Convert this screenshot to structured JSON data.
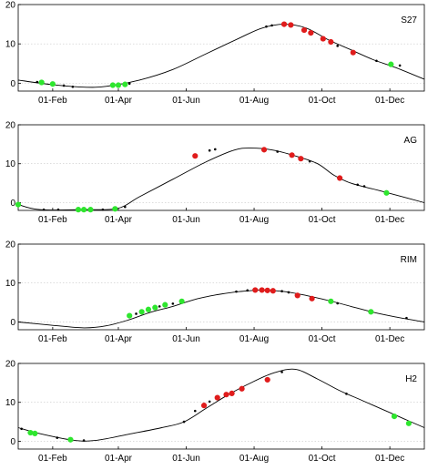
{
  "chart_data": [
    {
      "type": "line",
      "label": "S27",
      "x_ticks": [
        "01-Feb",
        "01-Apr",
        "01-Jun",
        "01-Aug",
        "01-Oct",
        "01-Dec"
      ],
      "x_tick_doy": [
        32,
        91,
        152,
        213,
        274,
        335
      ],
      "xlim": [
        1,
        366
      ],
      "ylim": [
        -2,
        20
      ],
      "y_ticks": [
        "0",
        "10",
        "20"
      ],
      "y_tick_values": [
        0,
        10,
        20
      ],
      "grid": "horizontal dotted",
      "curve": [
        [
          1,
          0.8
        ],
        [
          30,
          -0.3
        ],
        [
          60,
          -1
        ],
        [
          80,
          -0.8
        ],
        [
          110,
          0.8
        ],
        [
          140,
          3.5
        ],
        [
          170,
          7.5
        ],
        [
          200,
          11.5
        ],
        [
          220,
          14
        ],
        [
          240,
          15
        ],
        [
          260,
          14
        ],
        [
          280,
          11
        ],
        [
          300,
          8.5
        ],
        [
          320,
          6
        ],
        [
          340,
          4
        ],
        [
          366,
          1
        ]
      ],
      "points": [
        {
          "x": 22,
          "y": 0.2,
          "c": "g"
        },
        {
          "x": 32,
          "y": -0.2,
          "c": "g"
        },
        {
          "x": 86,
          "y": -0.5,
          "c": "g"
        },
        {
          "x": 91,
          "y": -0.5,
          "c": "g"
        },
        {
          "x": 97,
          "y": -0.3,
          "c": "g"
        },
        {
          "x": 240,
          "y": 15,
          "c": "r"
        },
        {
          "x": 246,
          "y": 14.8,
          "c": "r"
        },
        {
          "x": 258,
          "y": 13.5,
          "c": "r"
        },
        {
          "x": 264,
          "y": 12.8,
          "c": "r"
        },
        {
          "x": 275,
          "y": 11.3,
          "c": "r"
        },
        {
          "x": 282,
          "y": 10.5,
          "c": "r"
        },
        {
          "x": 302,
          "y": 7.8,
          "c": "r"
        },
        {
          "x": 336,
          "y": 4.8,
          "c": "g"
        },
        {
          "x": 18,
          "y": 0.3,
          "c": "k"
        },
        {
          "x": 42,
          "y": -0.6,
          "c": "k"
        },
        {
          "x": 50,
          "y": -0.9,
          "c": "k"
        },
        {
          "x": 101,
          "y": -0.1,
          "c": "k"
        },
        {
          "x": 224,
          "y": 14.4,
          "c": "k"
        },
        {
          "x": 229,
          "y": 14.7,
          "c": "k"
        },
        {
          "x": 288,
          "y": 9.5,
          "c": "k"
        },
        {
          "x": 323,
          "y": 5.7,
          "c": "k"
        },
        {
          "x": 344,
          "y": 4.5,
          "c": "k"
        }
      ]
    },
    {
      "type": "line",
      "label": "AG",
      "x_ticks": [
        "01-Feb",
        "01-Apr",
        "01-Jun",
        "01-Aug",
        "01-Oct",
        "01-Dec"
      ],
      "x_tick_doy": [
        32,
        91,
        152,
        213,
        274,
        335
      ],
      "xlim": [
        1,
        366
      ],
      "ylim": [
        -2,
        20
      ],
      "y_ticks": [
        "0",
        "10",
        "20"
      ],
      "y_tick_values": [
        0,
        10,
        20
      ],
      "grid": "horizontal dotted",
      "curve": [
        [
          1,
          -0.5
        ],
        [
          20,
          -1.8
        ],
        [
          60,
          -1.8
        ],
        [
          90,
          -1.5
        ],
        [
          110,
          1.5
        ],
        [
          140,
          6
        ],
        [
          170,
          10.5
        ],
        [
          195,
          13.5
        ],
        [
          210,
          14
        ],
        [
          230,
          13.5
        ],
        [
          250,
          12
        ],
        [
          270,
          10
        ],
        [
          285,
          7
        ],
        [
          300,
          5
        ],
        [
          320,
          3.5
        ],
        [
          340,
          2
        ],
        [
          366,
          0
        ]
      ],
      "points": [
        {
          "x": 1,
          "y": -0.5,
          "c": "g"
        },
        {
          "x": 55,
          "y": -1.8,
          "c": "g"
        },
        {
          "x": 60,
          "y": -1.8,
          "c": "g"
        },
        {
          "x": 66,
          "y": -1.8,
          "c": "g"
        },
        {
          "x": 88,
          "y": -1.6,
          "c": "g"
        },
        {
          "x": 160,
          "y": 12,
          "c": "r"
        },
        {
          "x": 222,
          "y": 13.6,
          "c": "r"
        },
        {
          "x": 247,
          "y": 12.2,
          "c": "r"
        },
        {
          "x": 255,
          "y": 11.3,
          "c": "r"
        },
        {
          "x": 290,
          "y": 6.3,
          "c": "r"
        },
        {
          "x": 24,
          "y": -1.8,
          "c": "k"
        },
        {
          "x": 37,
          "y": -1.8,
          "c": "k"
        },
        {
          "x": 77,
          "y": -1.8,
          "c": "k"
        },
        {
          "x": 97,
          "y": -1.1,
          "c": "k"
        },
        {
          "x": 173,
          "y": 13.4,
          "c": "k"
        },
        {
          "x": 178,
          "y": 13.7,
          "c": "k"
        },
        {
          "x": 234,
          "y": 13.1,
          "c": "k"
        },
        {
          "x": 263,
          "y": 10.6,
          "c": "k"
        },
        {
          "x": 306,
          "y": 4.6,
          "c": "k"
        },
        {
          "x": 312,
          "y": 4.2,
          "c": "k"
        },
        {
          "x": 332,
          "y": 2.5,
          "c": "g"
        }
      ]
    },
    {
      "type": "line",
      "label": "RIM",
      "x_ticks": [
        "01-Feb",
        "01-Apr",
        "01-Jun",
        "01-Aug",
        "01-Oct",
        "01-Dec"
      ],
      "x_tick_doy": [
        32,
        91,
        152,
        213,
        274,
        335
      ],
      "xlim": [
        1,
        366
      ],
      "ylim": [
        -2,
        20
      ],
      "y_ticks": [
        "0",
        "10",
        "20"
      ],
      "y_tick_values": [
        0,
        10,
        20
      ],
      "grid": "horizontal dotted",
      "curve": [
        [
          1,
          0
        ],
        [
          30,
          -0.8
        ],
        [
          60,
          -1.5
        ],
        [
          80,
          -1
        ],
        [
          100,
          0.5
        ],
        [
          120,
          2.5
        ],
        [
          140,
          4
        ],
        [
          160,
          5.8
        ],
        [
          180,
          7
        ],
        [
          200,
          7.8
        ],
        [
          220,
          8.2
        ],
        [
          240,
          7.8
        ],
        [
          260,
          6.8
        ],
        [
          280,
          5.5
        ],
        [
          300,
          4
        ],
        [
          320,
          2.5
        ],
        [
          340,
          1.3
        ],
        [
          366,
          0
        ]
      ],
      "points": [
        {
          "x": 101,
          "y": 1.6,
          "c": "g"
        },
        {
          "x": 112,
          "y": 2.6,
          "c": "g"
        },
        {
          "x": 118,
          "y": 3.2,
          "c": "g"
        },
        {
          "x": 124,
          "y": 3.7,
          "c": "g"
        },
        {
          "x": 133,
          "y": 4.4,
          "c": "g"
        },
        {
          "x": 148,
          "y": 5.3,
          "c": "g"
        },
        {
          "x": 214,
          "y": 8.2,
          "c": "r"
        },
        {
          "x": 220,
          "y": 8.2,
          "c": "r"
        },
        {
          "x": 225,
          "y": 8.1,
          "c": "r"
        },
        {
          "x": 230,
          "y": 8.0,
          "c": "r"
        },
        {
          "x": 252,
          "y": 6.8,
          "c": "r"
        },
        {
          "x": 265,
          "y": 6.0,
          "c": "r"
        },
        {
          "x": 282,
          "y": 5.3,
          "c": "g"
        },
        {
          "x": 107,
          "y": 2.1,
          "c": "k"
        },
        {
          "x": 128,
          "y": 4.0,
          "c": "k"
        },
        {
          "x": 140,
          "y": 4.7,
          "c": "k"
        },
        {
          "x": 197,
          "y": 7.8,
          "c": "k"
        },
        {
          "x": 207,
          "y": 8.1,
          "c": "k"
        },
        {
          "x": 238,
          "y": 7.9,
          "c": "k"
        },
        {
          "x": 244,
          "y": 7.6,
          "c": "k"
        },
        {
          "x": 288,
          "y": 4.8,
          "c": "k"
        },
        {
          "x": 318,
          "y": 2.6,
          "c": "g"
        },
        {
          "x": 350,
          "y": 1,
          "c": "k"
        }
      ]
    },
    {
      "type": "line",
      "label": "H2",
      "x_ticks": [
        "01-Feb",
        "01-Apr",
        "01-Jun",
        "01-Aug",
        "01-Oct",
        "01-Dec"
      ],
      "x_tick_doy": [
        32,
        91,
        152,
        213,
        274,
        335
      ],
      "xlim": [
        1,
        366
      ],
      "ylim": [
        -2,
        20
      ],
      "y_ticks": [
        "0",
        "10",
        "20"
      ],
      "y_tick_values": [
        0,
        10,
        20
      ],
      "grid": "horizontal dotted",
      "curve": [
        [
          1,
          3.5
        ],
        [
          20,
          2
        ],
        [
          50,
          0.3
        ],
        [
          70,
          0.2
        ],
        [
          100,
          1.8
        ],
        [
          130,
          3.5
        ],
        [
          150,
          5
        ],
        [
          170,
          8.5
        ],
        [
          190,
          12
        ],
        [
          210,
          15
        ],
        [
          230,
          17.5
        ],
        [
          250,
          18.5
        ],
        [
          270,
          16
        ],
        [
          290,
          13
        ],
        [
          310,
          10.5
        ],
        [
          330,
          8
        ],
        [
          350,
          5.5
        ],
        [
          366,
          3.5
        ]
      ],
      "points": [
        {
          "x": 12,
          "y": 2.2,
          "c": "g"
        },
        {
          "x": 16,
          "y": 2.0,
          "c": "g"
        },
        {
          "x": 48,
          "y": 0.4,
          "c": "g"
        },
        {
          "x": 168,
          "y": 9.2,
          "c": "r"
        },
        {
          "x": 180,
          "y": 11.2,
          "c": "r"
        },
        {
          "x": 188,
          "y": 12.0,
          "c": "r"
        },
        {
          "x": 193,
          "y": 12.3,
          "c": "r"
        },
        {
          "x": 202,
          "y": 13.5,
          "c": "r"
        },
        {
          "x": 225,
          "y": 15.8,
          "c": "r"
        },
        {
          "x": 4,
          "y": 3.2,
          "c": "k"
        },
        {
          "x": 36,
          "y": 0.9,
          "c": "k"
        },
        {
          "x": 60,
          "y": 0.2,
          "c": "k"
        },
        {
          "x": 150,
          "y": 5,
          "c": "k"
        },
        {
          "x": 160,
          "y": 7.8,
          "c": "k"
        },
        {
          "x": 173,
          "y": 10.2,
          "c": "k"
        },
        {
          "x": 238,
          "y": 17.8,
          "c": "k"
        },
        {
          "x": 296,
          "y": 12.2,
          "c": "k"
        },
        {
          "x": 339,
          "y": 6.4,
          "c": "g"
        },
        {
          "x": 352,
          "y": 4.6,
          "c": "g"
        }
      ]
    }
  ]
}
